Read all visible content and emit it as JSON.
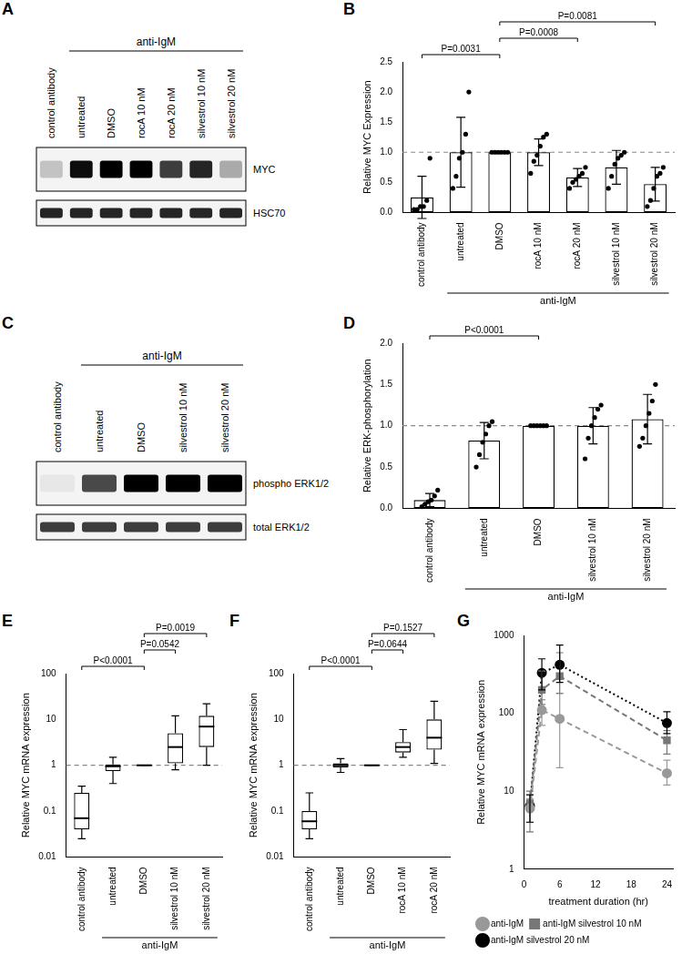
{
  "blots": [
    {
      "panel": "A",
      "lanes": [
        "control antibody",
        "untreated",
        "DMSO",
        "rocA 10 nM",
        "rocA 20 nM",
        "silvestrol 10 nM",
        "silvestrol 20 nM"
      ],
      "group_label": {
        "text": "anti-IgM",
        "from": "untreated",
        "to": "silvestrol 20 nM"
      },
      "rows": [
        {
          "name": "MYC",
          "intensity": [
            0.2,
            0.95,
            1.0,
            1.0,
            0.75,
            0.85,
            0.3
          ]
        },
        {
          "name": "HSC70",
          "intensity": [
            0.85,
            0.85,
            0.85,
            0.85,
            0.85,
            0.85,
            0.85
          ]
        }
      ]
    },
    {
      "panel": "C",
      "lanes": [
        "control antibody",
        "untreated",
        "DMSO",
        "silvestrol 10 nM",
        "silvestrol 20 nM"
      ],
      "group_label": {
        "text": "anti-IgM",
        "from": "untreated",
        "to": "silvestrol 20 nM"
      },
      "rows": [
        {
          "name": "phospho ERK1/2",
          "intensity": [
            0.05,
            0.7,
            1.0,
            1.0,
            1.0
          ]
        },
        {
          "name": "total ERK1/2",
          "intensity": [
            0.75,
            0.75,
            0.75,
            0.75,
            0.75
          ]
        }
      ]
    }
  ],
  "chart_data": [
    {
      "panel": "B",
      "type": "bar",
      "y_label": "Relative MYC Expression",
      "color": "#ffffff",
      "grid": false,
      "categories": [
        "control antibody",
        "untreated",
        "DMSO",
        "rocA 10 nM",
        "rocA 20 nM",
        "silvestrol 10 nM",
        "silvestrol 20 nM"
      ],
      "values": [
        0.25,
        1.0,
        1.0,
        1.0,
        0.58,
        0.75,
        0.47
      ],
      "error": [
        0.35,
        0.58,
        0,
        0.22,
        0.15,
        0.28,
        0.28
      ],
      "points": [
        [
          0.05,
          0.05,
          0.1,
          0.1,
          0.2,
          0.9
        ],
        [
          0.4,
          0.6,
          0.9,
          1.0,
          1.3,
          2.0
        ],
        [
          1,
          1,
          1,
          1,
          1,
          1
        ],
        [
          0.65,
          0.85,
          0.95,
          1.1,
          1.25,
          1.3
        ],
        [
          0.4,
          0.5,
          0.55,
          0.6,
          0.65,
          0.75
        ],
        [
          0.4,
          0.6,
          0.8,
          0.9,
          0.95,
          1.0
        ],
        [
          0.1,
          0.2,
          0.4,
          0.6,
          0.65,
          0.75
        ]
      ],
      "reference_line": 1,
      "ylim": [
        0,
        2.5
      ],
      "yticks": [
        {
          "value": 0,
          "label": "0.0"
        },
        {
          "value": 0.5,
          "label": "0.5"
        },
        {
          "value": 1,
          "label": "1.0"
        },
        {
          "value": 1.5,
          "label": "1.5"
        },
        {
          "value": 2,
          "label": "2.0"
        },
        {
          "value": 2.5,
          "label": "2.5"
        }
      ],
      "group_label": {
        "text": "anti-IgM",
        "from": "untreated",
        "to": "silvestrol 20 nM"
      },
      "annotations": [
        {
          "from": "control antibody",
          "to": "DMSO",
          "text": "P=0.0031"
        },
        {
          "from": "DMSO",
          "to": "rocA 20 nM",
          "text": "P=0.0008"
        },
        {
          "from": "DMSO",
          "to": "silvestrol 20 nM",
          "text": "P=0.0081"
        }
      ]
    },
    {
      "panel": "D",
      "type": "bar",
      "y_label": "Relative ERK-phosphorylation",
      "color": "#ffffff",
      "grid": false,
      "categories": [
        "control antibody",
        "untreated",
        "DMSO",
        "silvestrol 10 nM",
        "silvestrol 20 nM"
      ],
      "values": [
        0.1,
        0.82,
        1.0,
        1.0,
        1.08
      ],
      "error": [
        0.08,
        0.22,
        0,
        0.22,
        0.3
      ],
      "points": [
        [
          0.02,
          0.05,
          0.08,
          0.1,
          0.15,
          0.22
        ],
        [
          0.5,
          0.65,
          0.8,
          0.9,
          1.0,
          1.05
        ],
        [
          1,
          1,
          1,
          1,
          1,
          1
        ],
        [
          0.6,
          0.85,
          1.0,
          1.1,
          1.2,
          1.25
        ],
        [
          0.75,
          0.85,
          1.0,
          1.15,
          1.3,
          1.5
        ]
      ],
      "reference_line": 1,
      "ylim": [
        0,
        2
      ],
      "yticks": [
        {
          "value": 0,
          "label": "0.0"
        },
        {
          "value": 0.5,
          "label": "0.5"
        },
        {
          "value": 1,
          "label": "1.0"
        },
        {
          "value": 1.5,
          "label": "1.5"
        },
        {
          "value": 2,
          "label": "2.0"
        }
      ],
      "group_label": {
        "text": "anti-IgM",
        "from": "untreated",
        "to": "silvestrol 20 nM"
      },
      "annotations": [
        {
          "from": "control antibody",
          "to": "DMSO",
          "text": "P<0.0001"
        }
      ]
    },
    {
      "panel": "E",
      "type": "box",
      "y_label": "Relative MYC mRNA expression",
      "color": "#ffffff",
      "grid": false,
      "log": "y",
      "categories": [
        "control antibody",
        "untreated",
        "DMSO",
        "silvestrol 10 nM",
        "silvestrol 20 nM"
      ],
      "boxes": [
        [
          0.025,
          0.04,
          0.07,
          0.25,
          0.35
        ],
        [
          0.4,
          0.75,
          0.95,
          1.05,
          1.5
        ],
        [
          1,
          1,
          1,
          1,
          1
        ],
        [
          0.8,
          1.1,
          2.5,
          5,
          12
        ],
        [
          1.0,
          2.5,
          7,
          12,
          22
        ]
      ],
      "reference_line": 1,
      "ylim": [
        0.01,
        100
      ],
      "yticks": [
        0.01,
        0.1,
        1,
        10,
        100
      ],
      "group_label": {
        "text": "anti-IgM",
        "from": "untreated",
        "to": "silvestrol 20 nM"
      },
      "annotations": [
        {
          "from": "control antibody",
          "to": "DMSO",
          "text": "P<0.0001"
        },
        {
          "from": "DMSO",
          "to": "silvestrol 10 nM",
          "text": "P=0.0542"
        },
        {
          "from": "DMSO",
          "to": "silvestrol 20 nM",
          "text": "P=0.0019"
        }
      ]
    },
    {
      "panel": "F",
      "type": "box",
      "y_label": "Relative MYC mRNA expression",
      "color": "#ffffff",
      "grid": false,
      "log": "y",
      "categories": [
        "control antibody",
        "untreated",
        "DMSO",
        "rocA 10 nM",
        "rocA 20 nM"
      ],
      "boxes": [
        [
          0.025,
          0.04,
          0.06,
          0.1,
          0.25
        ],
        [
          0.7,
          0.9,
          1.0,
          1.1,
          1.4
        ],
        [
          1,
          1,
          1,
          1,
          1
        ],
        [
          1.5,
          1.9,
          2.5,
          3.2,
          6
        ],
        [
          1.1,
          2.2,
          4,
          10,
          25
        ]
      ],
      "reference_line": 1,
      "ylim": [
        0.01,
        100
      ],
      "yticks": [
        0.01,
        0.1,
        1,
        10,
        100
      ],
      "group_label": {
        "text": "anti-IgM",
        "from": "untreated",
        "to": "rocA 20 nM"
      },
      "annotations": [
        {
          "from": "control antibody",
          "to": "DMSO",
          "text": "P<0.0001"
        },
        {
          "from": "DMSO",
          "to": "rocA 10 nM",
          "text": "P=0.0644"
        },
        {
          "from": "DMSO",
          "to": "rocA 20 nM",
          "text": "P=0.1527"
        }
      ]
    },
    {
      "panel": "G",
      "type": "line",
      "y_label": "Relative MYC mRNA expression",
      "x_label": "treatment duration (hr)",
      "grid": false,
      "log": "y",
      "legend": "bottom",
      "x": [
        1,
        3,
        6,
        24
      ],
      "xlim": [
        0,
        25
      ],
      "xticks": [
        0,
        6,
        12,
        18,
        24
      ],
      "ylim": [
        1,
        1000
      ],
      "yticks": [
        1,
        10,
        100,
        1000
      ],
      "series": [
        {
          "name": "anti-IgM",
          "color": "#999999",
          "marker": "circle",
          "line_style": "dashed",
          "values": [
            6,
            110,
            85,
            17
          ],
          "error": [
            [
              4,
              8
            ],
            [
              70,
              150
            ],
            [
              20,
              180
            ],
            [
              12,
              25
            ]
          ]
        },
        {
          "name": "anti-IgM silvestrol 10 nM",
          "color": "#777777",
          "marker": "square",
          "line_style": "dashed",
          "values": [
            7,
            200,
            300,
            45
          ],
          "error": [
            [
              3,
              10
            ],
            [
              130,
              350
            ],
            [
              180,
              600
            ],
            [
              30,
              60
            ]
          ]
        },
        {
          "name": "anti-IgM silvestrol 20 nM",
          "color": "#000000",
          "marker": "circle",
          "line_style": "dotted",
          "values": [
            6.5,
            330,
            420,
            75
          ],
          "error": [
            [
              4,
              9
            ],
            [
              200,
              500
            ],
            [
              250,
              750
            ],
            [
              55,
              105
            ]
          ]
        }
      ]
    }
  ]
}
